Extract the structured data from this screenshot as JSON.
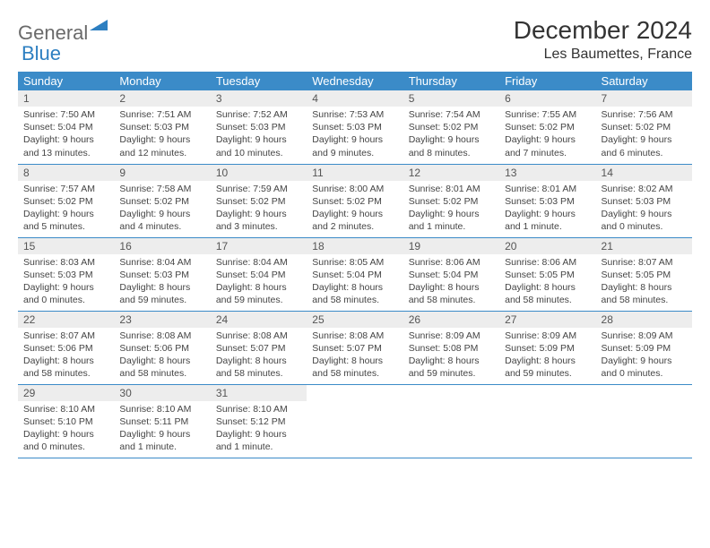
{
  "logo": {
    "text1": "General",
    "text2": "Blue"
  },
  "title": "December 2024",
  "location": "Les Baumettes, France",
  "colors": {
    "header_bg": "#3b8bc8",
    "daynum_bg": "#ededed",
    "accent": "#2d7fc1"
  },
  "day_headers": [
    "Sunday",
    "Monday",
    "Tuesday",
    "Wednesday",
    "Thursday",
    "Friday",
    "Saturday"
  ],
  "weeks": [
    [
      {
        "n": "1",
        "sr": "7:50 AM",
        "ss": "5:04 PM",
        "dl": "9 hours and 13 minutes."
      },
      {
        "n": "2",
        "sr": "7:51 AM",
        "ss": "5:03 PM",
        "dl": "9 hours and 12 minutes."
      },
      {
        "n": "3",
        "sr": "7:52 AM",
        "ss": "5:03 PM",
        "dl": "9 hours and 10 minutes."
      },
      {
        "n": "4",
        "sr": "7:53 AM",
        "ss": "5:03 PM",
        "dl": "9 hours and 9 minutes."
      },
      {
        "n": "5",
        "sr": "7:54 AM",
        "ss": "5:02 PM",
        "dl": "9 hours and 8 minutes."
      },
      {
        "n": "6",
        "sr": "7:55 AM",
        "ss": "5:02 PM",
        "dl": "9 hours and 7 minutes."
      },
      {
        "n": "7",
        "sr": "7:56 AM",
        "ss": "5:02 PM",
        "dl": "9 hours and 6 minutes."
      }
    ],
    [
      {
        "n": "8",
        "sr": "7:57 AM",
        "ss": "5:02 PM",
        "dl": "9 hours and 5 minutes."
      },
      {
        "n": "9",
        "sr": "7:58 AM",
        "ss": "5:02 PM",
        "dl": "9 hours and 4 minutes."
      },
      {
        "n": "10",
        "sr": "7:59 AM",
        "ss": "5:02 PM",
        "dl": "9 hours and 3 minutes."
      },
      {
        "n": "11",
        "sr": "8:00 AM",
        "ss": "5:02 PM",
        "dl": "9 hours and 2 minutes."
      },
      {
        "n": "12",
        "sr": "8:01 AM",
        "ss": "5:02 PM",
        "dl": "9 hours and 1 minute."
      },
      {
        "n": "13",
        "sr": "8:01 AM",
        "ss": "5:03 PM",
        "dl": "9 hours and 1 minute."
      },
      {
        "n": "14",
        "sr": "8:02 AM",
        "ss": "5:03 PM",
        "dl": "9 hours and 0 minutes."
      }
    ],
    [
      {
        "n": "15",
        "sr": "8:03 AM",
        "ss": "5:03 PM",
        "dl": "9 hours and 0 minutes."
      },
      {
        "n": "16",
        "sr": "8:04 AM",
        "ss": "5:03 PM",
        "dl": "8 hours and 59 minutes."
      },
      {
        "n": "17",
        "sr": "8:04 AM",
        "ss": "5:04 PM",
        "dl": "8 hours and 59 minutes."
      },
      {
        "n": "18",
        "sr": "8:05 AM",
        "ss": "5:04 PM",
        "dl": "8 hours and 58 minutes."
      },
      {
        "n": "19",
        "sr": "8:06 AM",
        "ss": "5:04 PM",
        "dl": "8 hours and 58 minutes."
      },
      {
        "n": "20",
        "sr": "8:06 AM",
        "ss": "5:05 PM",
        "dl": "8 hours and 58 minutes."
      },
      {
        "n": "21",
        "sr": "8:07 AM",
        "ss": "5:05 PM",
        "dl": "8 hours and 58 minutes."
      }
    ],
    [
      {
        "n": "22",
        "sr": "8:07 AM",
        "ss": "5:06 PM",
        "dl": "8 hours and 58 minutes."
      },
      {
        "n": "23",
        "sr": "8:08 AM",
        "ss": "5:06 PM",
        "dl": "8 hours and 58 minutes."
      },
      {
        "n": "24",
        "sr": "8:08 AM",
        "ss": "5:07 PM",
        "dl": "8 hours and 58 minutes."
      },
      {
        "n": "25",
        "sr": "8:08 AM",
        "ss": "5:07 PM",
        "dl": "8 hours and 58 minutes."
      },
      {
        "n": "26",
        "sr": "8:09 AM",
        "ss": "5:08 PM",
        "dl": "8 hours and 59 minutes."
      },
      {
        "n": "27",
        "sr": "8:09 AM",
        "ss": "5:09 PM",
        "dl": "8 hours and 59 minutes."
      },
      {
        "n": "28",
        "sr": "8:09 AM",
        "ss": "5:09 PM",
        "dl": "9 hours and 0 minutes."
      }
    ],
    [
      {
        "n": "29",
        "sr": "8:10 AM",
        "ss": "5:10 PM",
        "dl": "9 hours and 0 minutes."
      },
      {
        "n": "30",
        "sr": "8:10 AM",
        "ss": "5:11 PM",
        "dl": "9 hours and 1 minute."
      },
      {
        "n": "31",
        "sr": "8:10 AM",
        "ss": "5:12 PM",
        "dl": "9 hours and 1 minute."
      },
      null,
      null,
      null,
      null
    ]
  ],
  "labels": {
    "sunrise": "Sunrise: ",
    "sunset": "Sunset: ",
    "daylight": "Daylight: "
  }
}
